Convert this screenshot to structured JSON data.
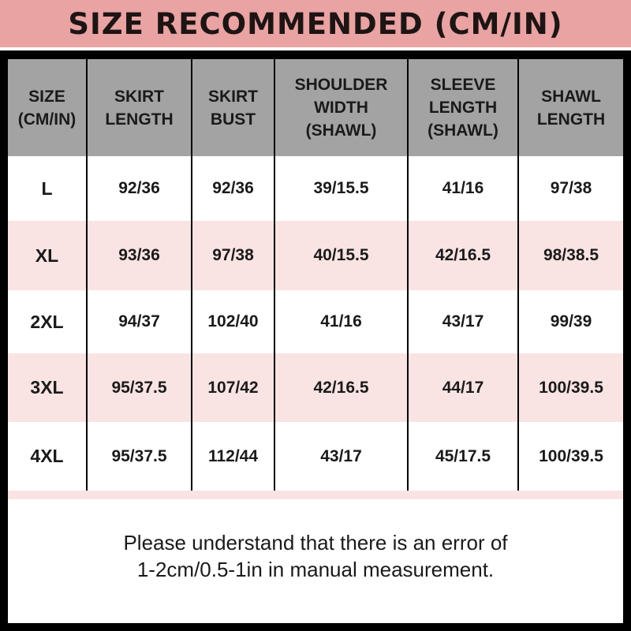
{
  "title": "SIZE RECOMMENDED (CM/IN)",
  "headers": [
    [
      "SIZE",
      "(CM/IN)"
    ],
    [
      "SKIRT",
      "LENGTH"
    ],
    [
      "SKIRT",
      "BUST"
    ],
    [
      "SHOULDER",
      "WIDTH",
      "(SHAWL)"
    ],
    [
      "SLEEVE",
      "LENGTH",
      "(SHAWL)"
    ],
    [
      "SHAWL",
      "LENGTH"
    ]
  ],
  "rows": [
    [
      "L",
      "92/36",
      "92/36",
      "39/15.5",
      "41/16",
      "97/38"
    ],
    [
      "XL",
      "93/36",
      "97/38",
      "40/15.5",
      "42/16.5",
      "98/38.5"
    ],
    [
      "2XL",
      "94/37",
      "102/40",
      "41/16",
      "43/17",
      "99/39"
    ],
    [
      "3XL",
      "95/37.5",
      "107/42",
      "42/16.5",
      "44/17",
      "100/39.5"
    ],
    [
      "4XL",
      "95/37.5",
      "112/44",
      "43/17",
      "45/17.5",
      "100/39.5"
    ]
  ],
  "note": [
    "Please understand that there is an error of",
    "1-2cm/0.5-1in in manual measurement."
  ],
  "colors": {
    "banner": "#e9a3a3",
    "header": "#a3a3a3",
    "row_alt": "#fae3e3",
    "frame": "#000000"
  }
}
